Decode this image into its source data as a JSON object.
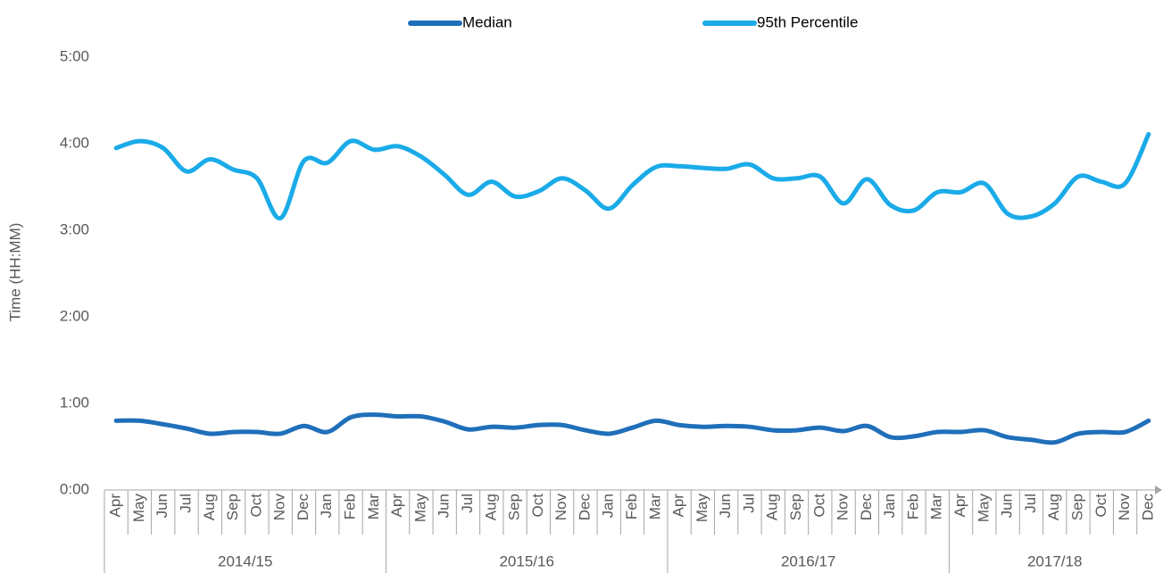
{
  "chart_data": {
    "type": "line",
    "y_label": "Time (HH:MM)",
    "category_groups": [
      {
        "name": "2014/15",
        "categories": [
          "Apr",
          "May",
          "Jun",
          "Jul",
          "Aug",
          "Sep",
          "Oct",
          "Nov",
          "Dec",
          "Jan",
          "Feb",
          "Mar"
        ]
      },
      {
        "name": "2015/16",
        "categories": [
          "Apr",
          "May",
          "Jun",
          "Jul",
          "Aug",
          "Sep",
          "Oct",
          "Nov",
          "Dec",
          "Jan",
          "Feb",
          "Mar"
        ]
      },
      {
        "name": "2016/17",
        "categories": [
          "Apr",
          "May",
          "Jun",
          "Jul",
          "Aug",
          "Sep",
          "Oct",
          "Nov",
          "Dec",
          "Jan",
          "Feb",
          "Mar"
        ]
      },
      {
        "name": "2017/18",
        "categories": [
          "Apr",
          "May",
          "Jun",
          "Jul",
          "Aug",
          "Sep",
          "Oct",
          "Nov",
          "Dec"
        ]
      }
    ],
    "series": [
      {
        "name": "Median",
        "color": "#1f6fba",
        "values": [
          0.8,
          0.8,
          0.76,
          0.71,
          0.65,
          0.67,
          0.67,
          0.65,
          0.74,
          0.67,
          0.84,
          0.87,
          0.85,
          0.85,
          0.79,
          0.7,
          0.73,
          0.72,
          0.75,
          0.75,
          0.69,
          0.65,
          0.72,
          0.8,
          0.75,
          0.73,
          0.74,
          0.73,
          0.69,
          0.69,
          0.72,
          0.68,
          0.74,
          0.61,
          0.62,
          0.67,
          0.67,
          0.69,
          0.61,
          0.58,
          0.55,
          0.65,
          0.67,
          0.67,
          0.8
        ]
      },
      {
        "name": "95th Percentile",
        "color": "#1aabe8",
        "values": [
          3.95,
          4.03,
          3.95,
          3.68,
          3.82,
          3.7,
          3.6,
          3.14,
          3.8,
          3.78,
          4.03,
          3.93,
          3.97,
          3.85,
          3.64,
          3.41,
          3.56,
          3.39,
          3.45,
          3.6,
          3.46,
          3.25,
          3.52,
          3.73,
          3.74,
          3.72,
          3.71,
          3.76,
          3.6,
          3.6,
          3.62,
          3.31,
          3.59,
          3.29,
          3.23,
          3.44,
          3.44,
          3.54,
          3.19,
          3.16,
          3.31,
          3.62,
          3.56,
          3.54,
          4.11
        ]
      }
    ],
    "ylim": [
      0,
      5
    ],
    "yticks": [
      {
        "value": 0,
        "label": "0:00"
      },
      {
        "value": 1,
        "label": "1:00"
      },
      {
        "value": 2,
        "label": "2:00"
      },
      {
        "value": 3,
        "label": "3:00"
      },
      {
        "value": 4,
        "label": "4:00"
      },
      {
        "value": 5,
        "label": "5:00"
      }
    ],
    "grid": false,
    "legend": "top"
  }
}
